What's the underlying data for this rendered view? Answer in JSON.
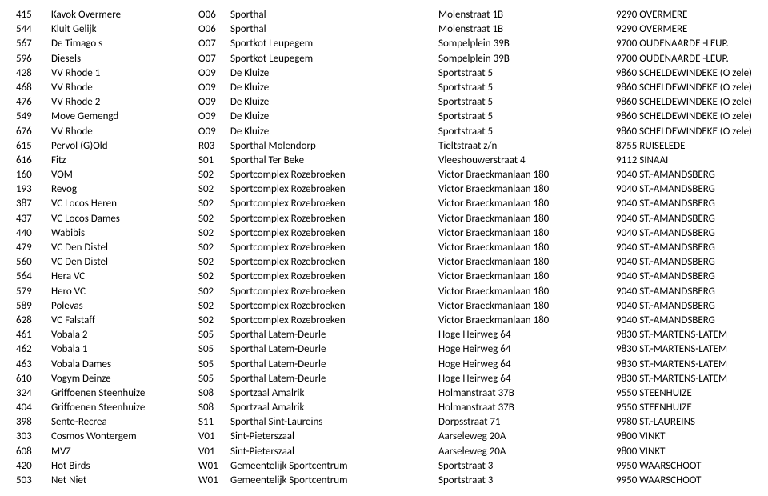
{
  "rows": [
    {
      "num": "415",
      "name": "Kavok Overmere",
      "code": "O06",
      "venue": "Sporthal",
      "addr": "Molenstraat 1B",
      "city": "9290 OVERMERE"
    },
    {
      "num": "544",
      "name": "Kluit Gelijk",
      "code": "O06",
      "venue": "Sporthal",
      "addr": "Molenstraat 1B",
      "city": "9290 OVERMERE"
    },
    {
      "num": "567",
      "name": "De Timago s",
      "code": "O07",
      "venue": "Sportkot Leupegem",
      "addr": "Sompelplein 39B",
      "city": "9700 OUDENAARDE -LEUP."
    },
    {
      "num": "596",
      "name": "Diesels",
      "code": "O07",
      "venue": "Sportkot Leupegem",
      "addr": "Sompelplein 39B",
      "city": "9700 OUDENAARDE -LEUP."
    },
    {
      "num": "428",
      "name": "VV Rhode 1",
      "code": "O09",
      "venue": "De Kluize",
      "addr": "Sportstraat 5",
      "city": "9860 SCHELDEWINDEKE (O zele)"
    },
    {
      "num": "468",
      "name": "VV Rhode",
      "code": "O09",
      "venue": "De Kluize",
      "addr": "Sportstraat 5",
      "city": "9860 SCHELDEWINDEKE (O zele)"
    },
    {
      "num": "476",
      "name": "VV Rhode 2",
      "code": "O09",
      "venue": "De Kluize",
      "addr": "Sportstraat 5",
      "city": "9860 SCHELDEWINDEKE (O zele)"
    },
    {
      "num": "549",
      "name": "Move Gemengd",
      "code": "O09",
      "venue": "De Kluize",
      "addr": "Sportstraat 5",
      "city": "9860 SCHELDEWINDEKE (O zele)"
    },
    {
      "num": "676",
      "name": "VV Rhode",
      "code": "O09",
      "venue": "De Kluize",
      "addr": "Sportstraat 5",
      "city": "9860 SCHELDEWINDEKE (O zele)"
    },
    {
      "num": "615",
      "name": "Pervol (G)Old",
      "code": "R03",
      "venue": "Sporthal Molendorp",
      "addr": "Tieltstraat z/n",
      "city": "8755 RUISELEDE"
    },
    {
      "num": "616",
      "name": "Fitz",
      "code": "S01",
      "venue": "Sporthal Ter Beke",
      "addr": "Vleeshouwerstraat 4",
      "city": "9112 SINAAI"
    },
    {
      "num": "160",
      "name": "VOM",
      "code": "S02",
      "venue": "Sportcomplex Rozebroeken",
      "addr": "Victor Braeckmanlaan 180",
      "city": "9040 ST.-AMANDSBERG"
    },
    {
      "num": "193",
      "name": "Revog",
      "code": "S02",
      "venue": "Sportcomplex Rozebroeken",
      "addr": "Victor Braeckmanlaan 180",
      "city": "9040 ST.-AMANDSBERG"
    },
    {
      "num": "387",
      "name": "VC Locos Heren",
      "code": "S02",
      "venue": "Sportcomplex Rozebroeken",
      "addr": "Victor Braeckmanlaan 180",
      "city": "9040 ST.-AMANDSBERG"
    },
    {
      "num": "437",
      "name": "VC Locos Dames",
      "code": "S02",
      "venue": "Sportcomplex Rozebroeken",
      "addr": "Victor Braeckmanlaan 180",
      "city": "9040 ST.-AMANDSBERG"
    },
    {
      "num": "440",
      "name": "Wabibis",
      "code": "S02",
      "venue": "Sportcomplex Rozebroeken",
      "addr": "Victor Braeckmanlaan 180",
      "city": "9040 ST.-AMANDSBERG"
    },
    {
      "num": "479",
      "name": "VC Den Distel",
      "code": "S02",
      "venue": "Sportcomplex Rozebroeken",
      "addr": "Victor Braeckmanlaan 180",
      "city": "9040 ST.-AMANDSBERG"
    },
    {
      "num": "560",
      "name": "VC Den Distel",
      "code": "S02",
      "venue": "Sportcomplex Rozebroeken",
      "addr": "Victor Braeckmanlaan 180",
      "city": "9040 ST.-AMANDSBERG"
    },
    {
      "num": "564",
      "name": "Hera VC",
      "code": "S02",
      "venue": "Sportcomplex Rozebroeken",
      "addr": "Victor Braeckmanlaan 180",
      "city": "9040 ST.-AMANDSBERG"
    },
    {
      "num": "579",
      "name": "Hero VC",
      "code": "S02",
      "venue": "Sportcomplex Rozebroeken",
      "addr": "Victor Braeckmanlaan 180",
      "city": "9040 ST.-AMANDSBERG"
    },
    {
      "num": "589",
      "name": "Polevas",
      "code": "S02",
      "venue": "Sportcomplex Rozebroeken",
      "addr": "Victor Braeckmanlaan 180",
      "city": "9040 ST.-AMANDSBERG"
    },
    {
      "num": "628",
      "name": "VC Falstaff",
      "code": "S02",
      "venue": "Sportcomplex Rozebroeken",
      "addr": "Victor Braeckmanlaan 180",
      "city": "9040 ST.-AMANDSBERG"
    },
    {
      "num": "461",
      "name": "Vobala 2",
      "code": "S05",
      "venue": "Sporthal Latem-Deurle",
      "addr": "Hoge Heirweg 64",
      "city": "9830 ST.-MARTENS-LATEM"
    },
    {
      "num": "462",
      "name": "Vobala 1",
      "code": "S05",
      "venue": "Sporthal Latem-Deurle",
      "addr": "Hoge Heirweg 64",
      "city": "9830 ST.-MARTENS-LATEM"
    },
    {
      "num": "463",
      "name": "Vobala Dames",
      "code": "S05",
      "venue": "Sporthal Latem-Deurle",
      "addr": "Hoge Heirweg 64",
      "city": "9830 ST.-MARTENS-LATEM"
    },
    {
      "num": "610",
      "name": "Vogym Deinze",
      "code": "S05",
      "venue": "Sporthal Latem-Deurle",
      "addr": "Hoge Heirweg 64",
      "city": "9830 ST.-MARTENS-LATEM"
    },
    {
      "num": "324",
      "name": "Griffoenen Steenhuize",
      "code": "S08",
      "venue": "Sportzaal Amalrik",
      "addr": "Holmanstraat 37B",
      "city": "9550 STEENHUIZE"
    },
    {
      "num": "404",
      "name": "Griffoenen Steenhuize",
      "code": "S08",
      "venue": "Sportzaal Amalrik",
      "addr": "Holmanstraat 37B",
      "city": "9550 STEENHUIZE"
    },
    {
      "num": "398",
      "name": "Sente-Recrea",
      "code": "S11",
      "venue": "Sporthal Sint-Laureins",
      "addr": "Dorpsstraat 71",
      "city": "9980 ST.-LAUREINS"
    },
    {
      "num": "303",
      "name": "Cosmos Wontergem",
      "code": "V01",
      "venue": "Sint-Pieterszaal",
      "addr": "Aarseleweg 20A",
      "city": "9800 VINKT"
    },
    {
      "num": "608",
      "name": "MVZ",
      "code": "V01",
      "venue": "Sint-Pieterszaal",
      "addr": "Aarseleweg 20A",
      "city": "9800 VINKT"
    },
    {
      "num": "420",
      "name": "Hot Birds",
      "code": "W01",
      "venue": "Gemeentelijk Sportcentrum",
      "addr": "Sportstraat 3",
      "city": "9950 WAARSCHOOT"
    },
    {
      "num": "503",
      "name": "Net Niet",
      "code": "W01",
      "venue": "Gemeentelijk Sportcentrum",
      "addr": "Sportstraat 3",
      "city": "9950 WAARSCHOOT"
    }
  ]
}
